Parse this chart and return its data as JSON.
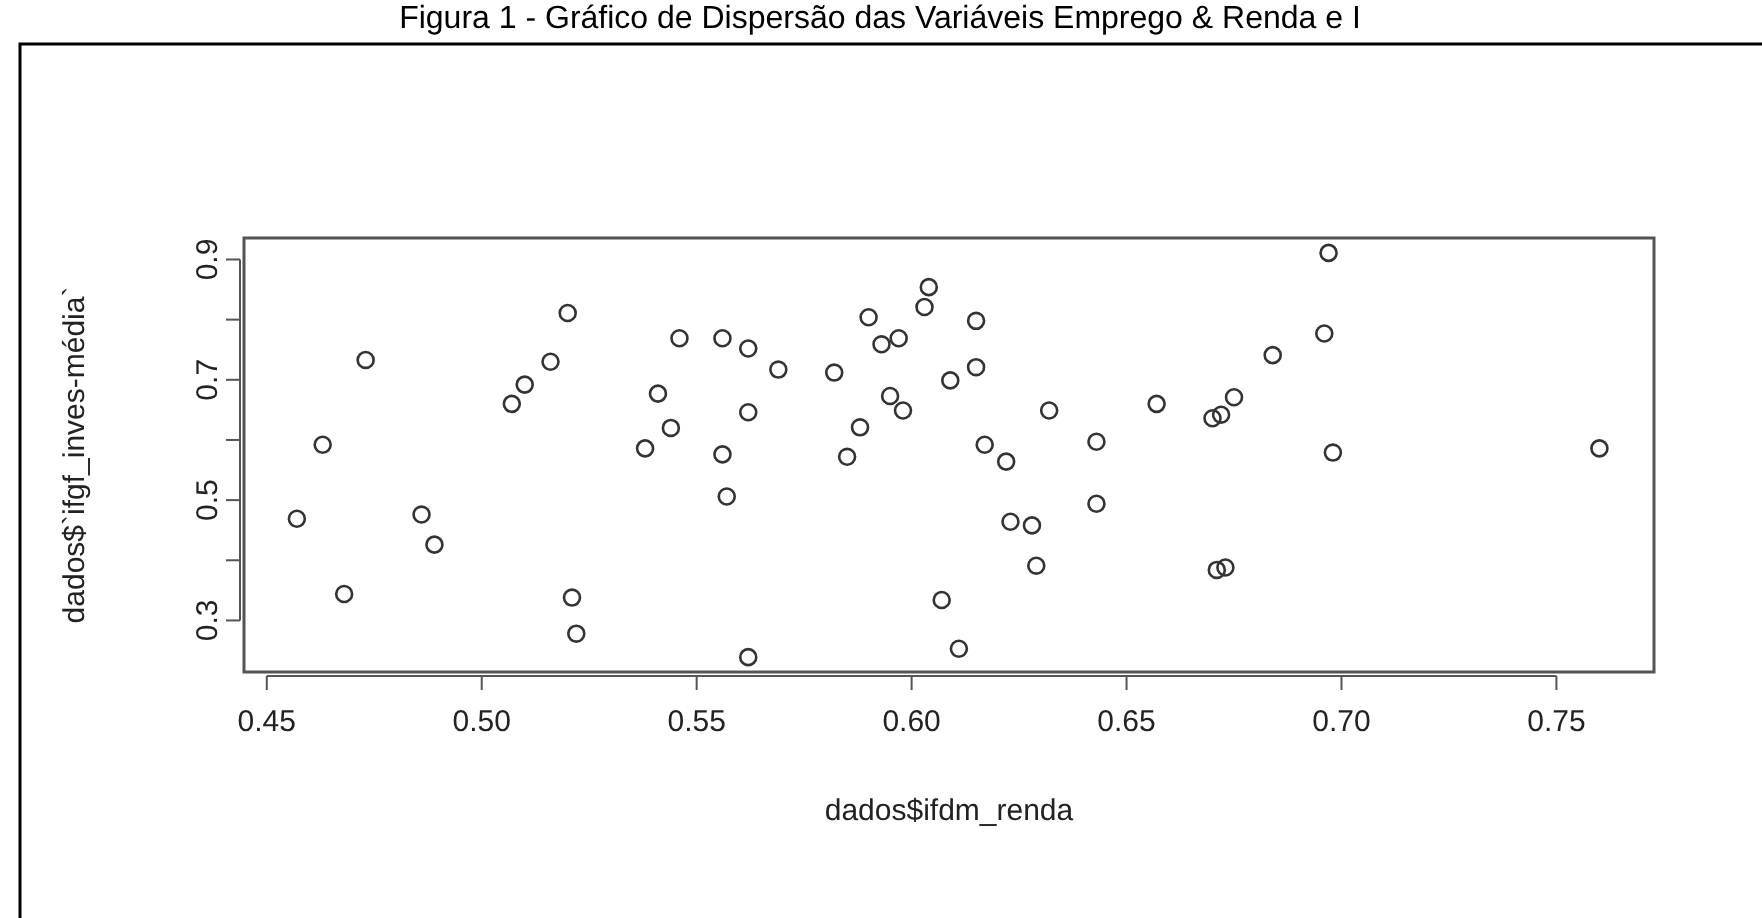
{
  "chart_data": {
    "type": "scatter",
    "title": "Figura 1 - Gráfico de Dispersão das Variáveis Emprego & Renda e I",
    "xlabel": "dados$ifdm_renda",
    "ylabel": "dados$`ifgf_inves-média`",
    "marker": "circle",
    "xlim": [
      0.4447,
      0.7727
    ],
    "ylim": [
      0.2143,
      0.9357
    ],
    "xticks": [
      {
        "value": 0.45,
        "label": "0.45"
      },
      {
        "value": 0.5,
        "label": "0.50"
      },
      {
        "value": 0.55,
        "label": "0.55"
      },
      {
        "value": 0.6,
        "label": "0.60"
      },
      {
        "value": 0.65,
        "label": "0.65"
      },
      {
        "value": 0.7,
        "label": "0.70"
      },
      {
        "value": 0.75,
        "label": "0.75"
      }
    ],
    "yticks": [
      {
        "value": 0.3,
        "label": "0.3"
      },
      {
        "value": 0.4,
        "label": null
      },
      {
        "value": 0.5,
        "label": "0.5"
      },
      {
        "value": 0.6,
        "label": null
      },
      {
        "value": 0.7,
        "label": "0.7"
      },
      {
        "value": 0.8,
        "label": null
      },
      {
        "value": 0.9,
        "label": "0.9"
      }
    ],
    "series": [
      {
        "color": "#333333",
        "x": [
          0.457,
          0.463,
          0.468,
          0.473,
          0.486,
          0.489,
          0.507,
          0.51,
          0.516,
          0.52,
          0.521,
          0.522,
          0.538,
          0.541,
          0.544,
          0.546,
          0.556,
          0.556,
          0.557,
          0.562,
          0.562,
          0.562,
          0.569,
          0.582,
          0.585,
          0.588,
          0.59,
          0.593,
          0.595,
          0.597,
          0.598,
          0.603,
          0.604,
          0.607,
          0.609,
          0.611,
          0.615,
          0.615,
          0.617,
          0.622,
          0.623,
          0.628,
          0.629,
          0.632,
          0.643,
          0.643,
          0.657,
          0.67,
          0.672,
          0.675,
          0.671,
          0.673,
          0.684,
          0.696,
          0.697,
          0.698,
          0.76
        ],
        "values": [
          0.469,
          0.592,
          0.344,
          0.733,
          0.476,
          0.426,
          0.66,
          0.692,
          0.73,
          0.811,
          0.338,
          0.278,
          0.586,
          0.677,
          0.62,
          0.769,
          0.769,
          0.576,
          0.506,
          0.752,
          0.646,
          0.239,
          0.717,
          0.712,
          0.572,
          0.621,
          0.804,
          0.759,
          0.673,
          0.769,
          0.649,
          0.821,
          0.854,
          0.334,
          0.699,
          0.253,
          0.798,
          0.721,
          0.592,
          0.564,
          0.464,
          0.458,
          0.391,
          0.649,
          0.597,
          0.494,
          0.66,
          0.636,
          0.642,
          0.671,
          0.384,
          0.388,
          0.741,
          0.777,
          0.911,
          0.579,
          0.586
        ]
      }
    ]
  }
}
